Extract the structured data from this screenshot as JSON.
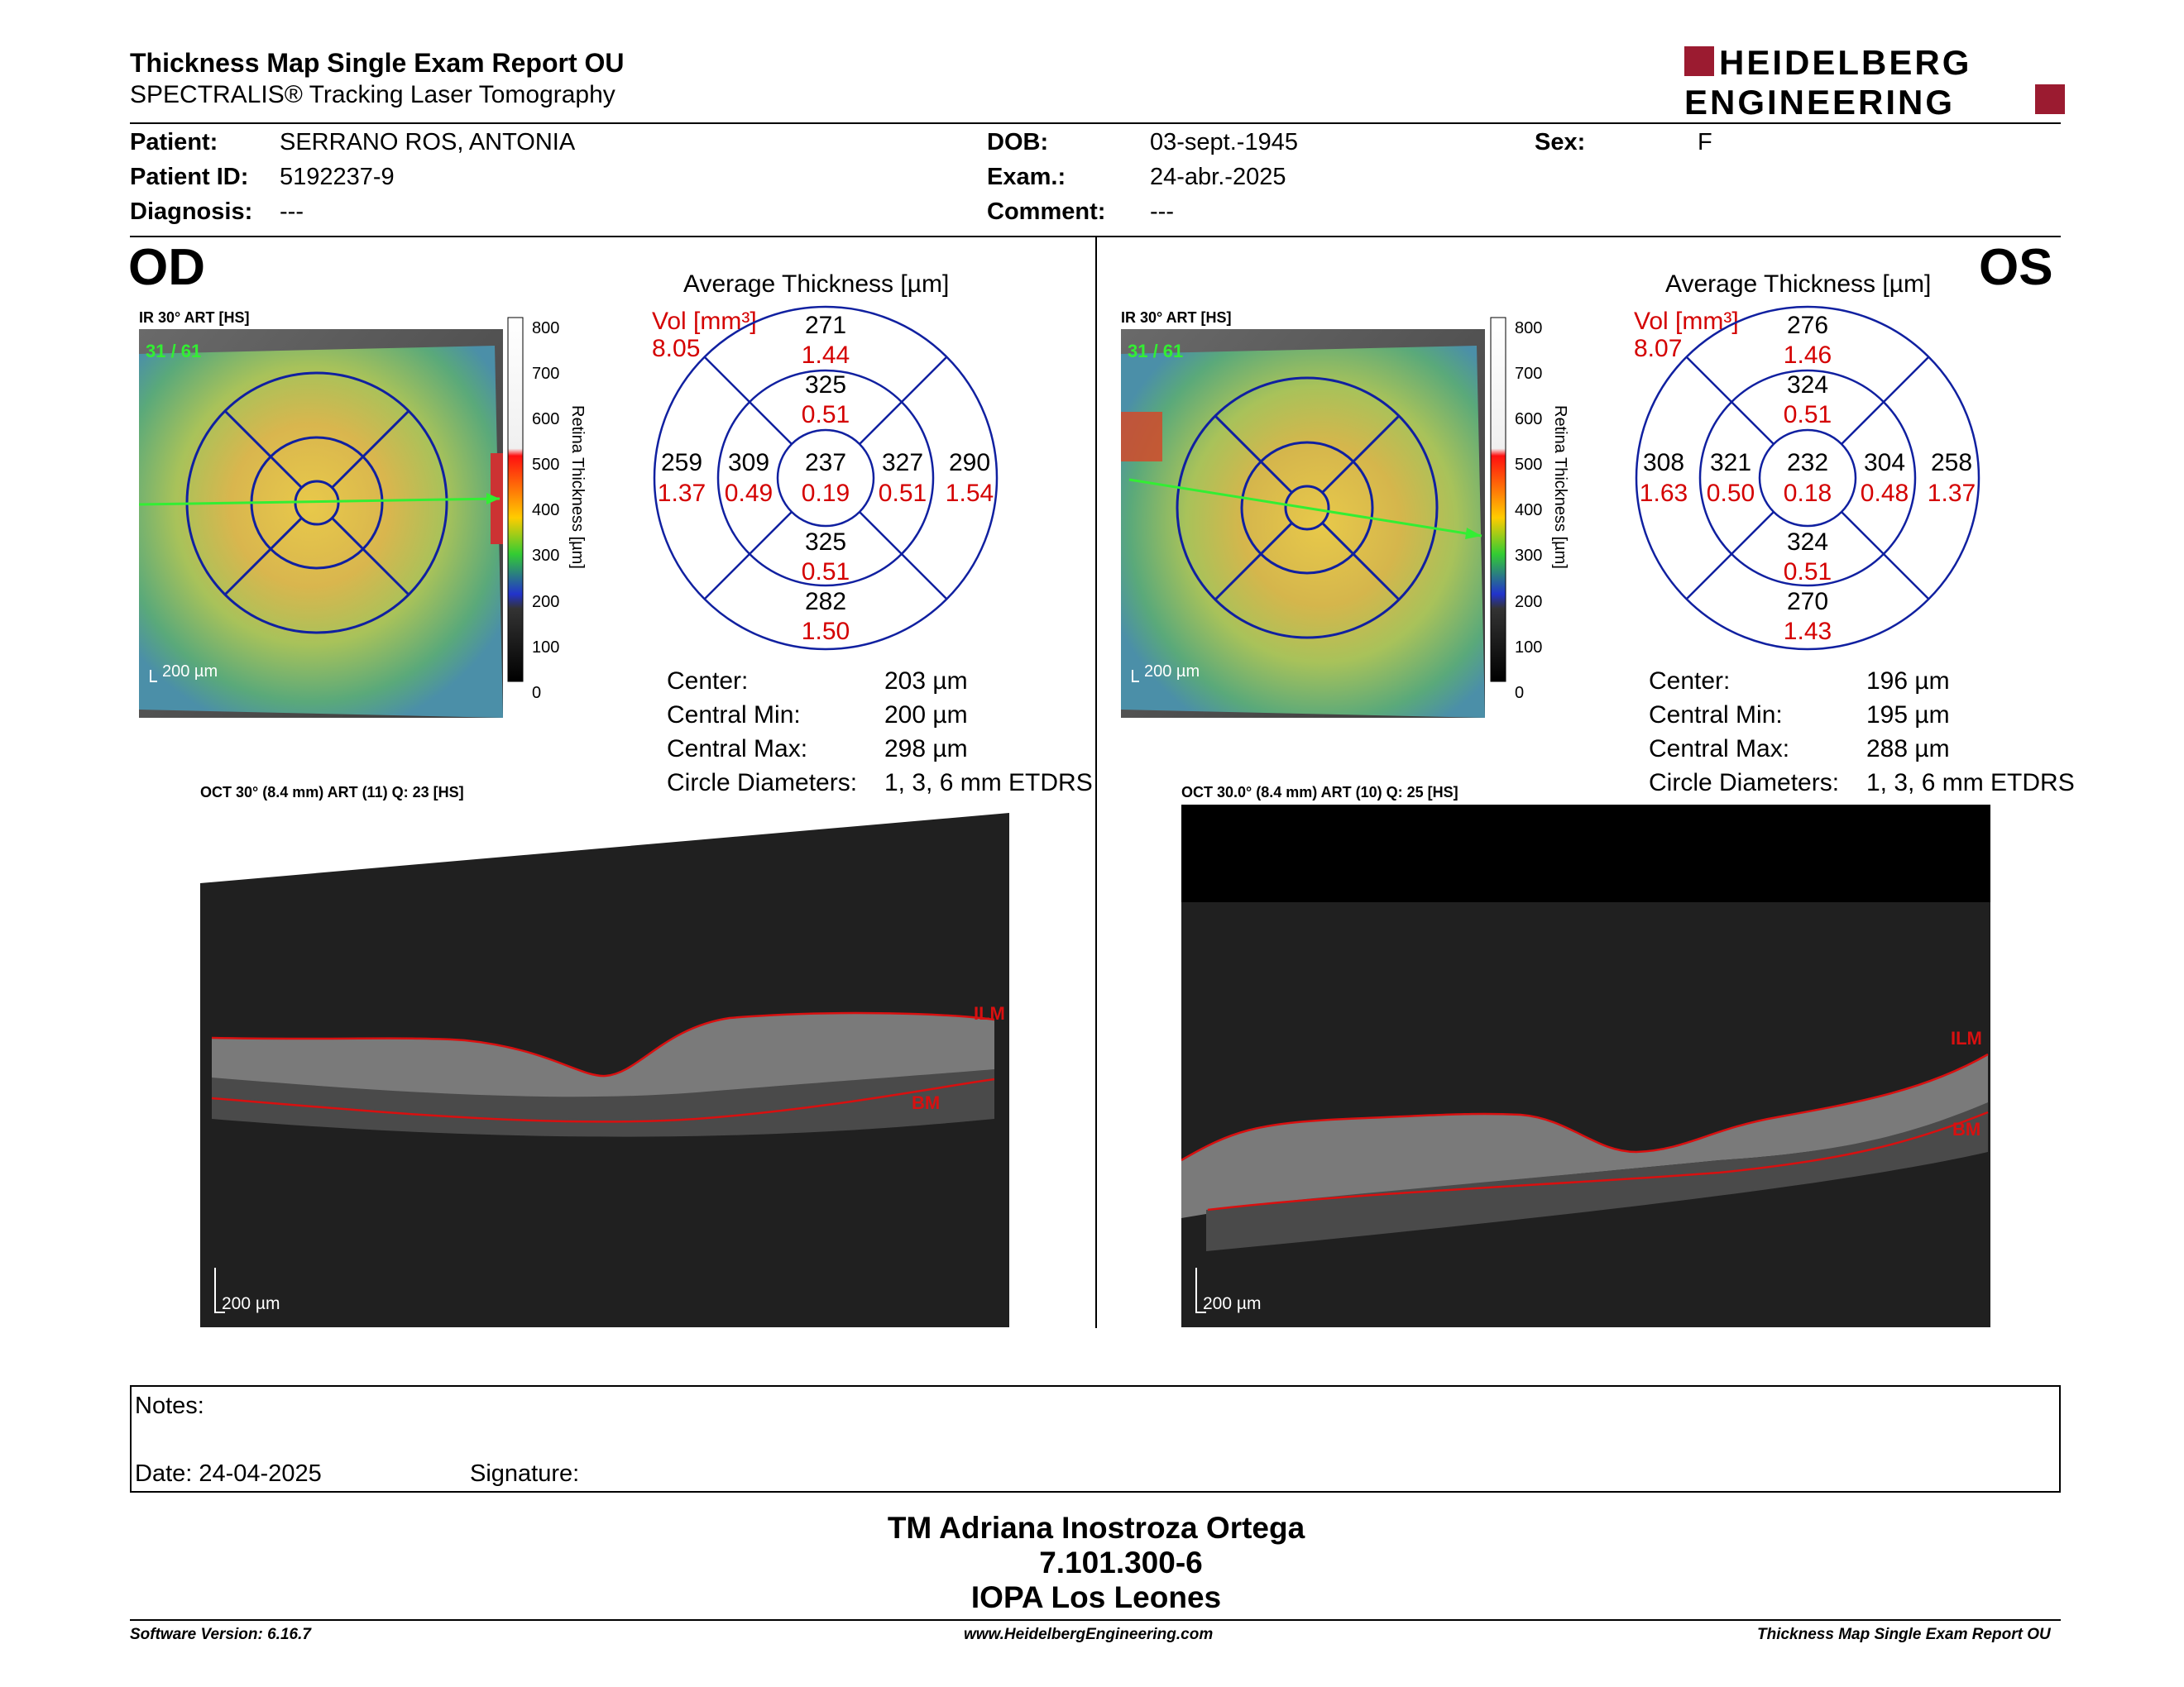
{
  "header": {
    "title": "Thickness Map Single Exam Report OU",
    "subtitle": "SPECTRALIS® Tracking Laser Tomography",
    "logo_top": "HEIDELBERG",
    "logo_bottom": "ENGINEERING",
    "brand_color": "#9b1b30"
  },
  "patient": {
    "patient_label": "Patient:",
    "patient_value": "SERRANO ROS, ANTONIA",
    "id_label": "Patient ID:",
    "id_value": "5192237-9",
    "diag_label": "Diagnosis:",
    "diag_value": "---",
    "dob_label": "DOB:",
    "dob_value": "03-sept.-1945",
    "exam_label": "Exam.:",
    "exam_value": "24-abr.-2025",
    "comment_label": "Comment:",
    "comment_value": "---",
    "sex_label": "Sex:",
    "sex_value": "F"
  },
  "od": {
    "eye": "OD",
    "ir_caption": "IR 30° ART [HS]",
    "frame": "31 / 61",
    "scale": "200 µm",
    "colorbar_ticks": [
      "800",
      "700",
      "600",
      "500",
      "400",
      "300",
      "200",
      "100",
      "0"
    ],
    "colorbar_title": "Retina  Thickness [µm]",
    "avg_title": "Average Thickness [µm]",
    "vol_label": "Vol [mm³]",
    "vol_total": "8.05",
    "grid": {
      "center": {
        "t": "237",
        "v": "0.19"
      },
      "inner_sup": {
        "t": "325",
        "v": "0.51"
      },
      "inner_inf": {
        "t": "325",
        "v": "0.51"
      },
      "inner_left": {
        "t": "309",
        "v": "0.49"
      },
      "inner_right": {
        "t": "327",
        "v": "0.51"
      },
      "outer_sup": {
        "t": "271",
        "v": "1.44"
      },
      "outer_inf": {
        "t": "282",
        "v": "1.50"
      },
      "outer_left": {
        "t": "259",
        "v": "1.37"
      },
      "outer_right": {
        "t": "290",
        "v": "1.54"
      }
    },
    "stats": {
      "center_label": "Center:",
      "center_value": "203 µm",
      "min_label": "Central Min:",
      "min_value": "200 µm",
      "max_label": "Central Max:",
      "max_value": "298 µm",
      "circle_label": "Circle Diameters:",
      "circle_value": "1, 3, 6 mm ETDRS"
    },
    "oct_caption": "OCT 30° (8.4 mm) ART (11) Q: 23 [HS]",
    "oct_scale": "200 µm",
    "ilm": "ILM",
    "bm": "BM"
  },
  "os": {
    "eye": "OS",
    "ir_caption": "IR 30° ART [HS]",
    "frame": "31 / 61",
    "scale": "200 µm",
    "colorbar_ticks": [
      "800",
      "700",
      "600",
      "500",
      "400",
      "300",
      "200",
      "100",
      "0"
    ],
    "colorbar_title": "Retina  Thickness [µm]",
    "avg_title": "Average Thickness [µm]",
    "vol_label": "Vol [mm³]",
    "vol_total": "8.07",
    "grid": {
      "center": {
        "t": "232",
        "v": "0.18"
      },
      "inner_sup": {
        "t": "324",
        "v": "0.51"
      },
      "inner_inf": {
        "t": "324",
        "v": "0.51"
      },
      "inner_left": {
        "t": "321",
        "v": "0.50"
      },
      "inner_right": {
        "t": "304",
        "v": "0.48"
      },
      "outer_sup": {
        "t": "276",
        "v": "1.46"
      },
      "outer_inf": {
        "t": "270",
        "v": "1.43"
      },
      "outer_left": {
        "t": "308",
        "v": "1.63"
      },
      "outer_right": {
        "t": "258",
        "v": "1.37"
      }
    },
    "stats": {
      "center_label": "Center:",
      "center_value": "196 µm",
      "min_label": "Central Min:",
      "min_value": "195 µm",
      "max_label": "Central Max:",
      "max_value": "288 µm",
      "circle_label": "Circle Diameters:",
      "circle_value": "1, 3, 6 mm ETDRS"
    },
    "oct_caption": "OCT 30.0° (8.4 mm) ART (10) Q: 25 [HS]",
    "oct_scale": "200 µm",
    "ilm": "ILM",
    "bm": "BM"
  },
  "notes": {
    "notes_label": "Notes:",
    "date_label": "Date: 24-04-2025",
    "signature_label": "Signature:"
  },
  "signature": {
    "line1": "TM Adriana Inostroza Ortega",
    "line2": "7.101.300-6",
    "line3": "IOPA Los Leones"
  },
  "footer": {
    "version": "Software Version: 6.16.7",
    "url": "www.HeidelbergEngineering.com",
    "report": "Thickness Map Single Exam Report OU"
  }
}
